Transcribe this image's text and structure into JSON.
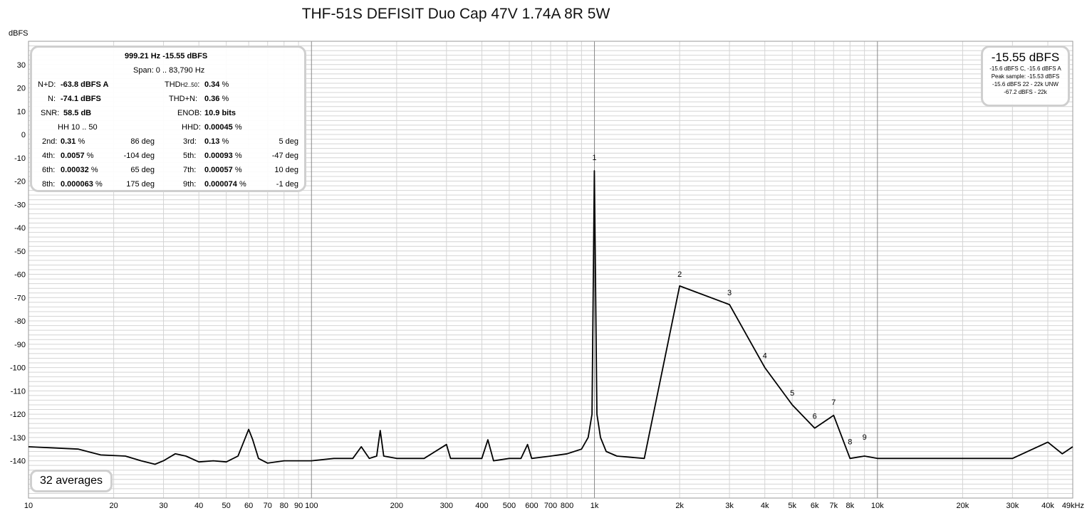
{
  "chart_data": {
    "type": "line",
    "title": "THF-51S DEFISIT Duo Cap 47V 1.74A 8R 5W",
    "ylabel": "dBFS",
    "xlabel": "",
    "x_scale": "log",
    "xlim": [
      10,
      49000
    ],
    "ylim": [
      -156,
      40
    ],
    "grid": true,
    "y_ticks": [
      30,
      20,
      10,
      0,
      -10,
      -20,
      -30,
      -40,
      -50,
      -60,
      -70,
      -80,
      -90,
      -100,
      -110,
      -120,
      -130,
      -140
    ],
    "x_ticks": [
      {
        "v": 10,
        "label": "10"
      },
      {
        "v": 20,
        "label": "20"
      },
      {
        "v": 30,
        "label": "30"
      },
      {
        "v": 40,
        "label": "40"
      },
      {
        "v": 50,
        "label": "50"
      },
      {
        "v": 60,
        "label": "60"
      },
      {
        "v": 70,
        "label": "70"
      },
      {
        "v": 80,
        "label": "80"
      },
      {
        "v": 90,
        "label": "90"
      },
      {
        "v": 100,
        "label": "100"
      },
      {
        "v": 200,
        "label": "200"
      },
      {
        "v": 300,
        "label": "300"
      },
      {
        "v": 400,
        "label": "400"
      },
      {
        "v": 500,
        "label": "500"
      },
      {
        "v": 600,
        "label": "600"
      },
      {
        "v": 700,
        "label": "700"
      },
      {
        "v": 800,
        "label": "800"
      },
      {
        "v": 1000,
        "label": "1k"
      },
      {
        "v": 2000,
        "label": "2k"
      },
      {
        "v": 3000,
        "label": "3k"
      },
      {
        "v": 4000,
        "label": "4k"
      },
      {
        "v": 5000,
        "label": "5k"
      },
      {
        "v": 6000,
        "label": "6k"
      },
      {
        "v": 7000,
        "label": "7k"
      },
      {
        "v": 8000,
        "label": "8k"
      },
      {
        "v": 10000,
        "label": "10k"
      },
      {
        "v": 20000,
        "label": "20k"
      },
      {
        "v": 30000,
        "label": "30k"
      },
      {
        "v": 40000,
        "label": "40k"
      },
      {
        "v": 49000,
        "label": "49kHz"
      }
    ],
    "series": [
      {
        "values": [
          [
            10,
            -134
          ],
          [
            15,
            -135
          ],
          [
            18,
            -137.5
          ],
          [
            22,
            -138
          ],
          [
            25,
            -140
          ],
          [
            28,
            -141.5
          ],
          [
            30,
            -140
          ],
          [
            33,
            -137
          ],
          [
            36,
            -138
          ],
          [
            40,
            -140.5
          ],
          [
            45,
            -140
          ],
          [
            50,
            -140.5
          ],
          [
            55,
            -138
          ],
          [
            58,
            -131
          ],
          [
            60,
            -126.5
          ],
          [
            62,
            -131
          ],
          [
            65,
            -139
          ],
          [
            70,
            -141
          ],
          [
            80,
            -140
          ],
          [
            90,
            -140
          ],
          [
            100,
            -140
          ],
          [
            120,
            -139
          ],
          [
            140,
            -139
          ],
          [
            150,
            -134
          ],
          [
            160,
            -139
          ],
          [
            170,
            -138
          ],
          [
            175,
            -127
          ],
          [
            180,
            -138
          ],
          [
            200,
            -139
          ],
          [
            250,
            -139
          ],
          [
            300,
            -133
          ],
          [
            310,
            -139
          ],
          [
            400,
            -139
          ],
          [
            420,
            -131
          ],
          [
            440,
            -140
          ],
          [
            500,
            -139
          ],
          [
            550,
            -139
          ],
          [
            580,
            -133
          ],
          [
            600,
            -139
          ],
          [
            700,
            -138
          ],
          [
            800,
            -137
          ],
          [
            900,
            -135
          ],
          [
            950,
            -130
          ],
          [
            980,
            -120
          ],
          [
            999.21,
            -15.55
          ],
          [
            1020,
            -120
          ],
          [
            1050,
            -130
          ],
          [
            1100,
            -136
          ],
          [
            1200,
            -138
          ],
          [
            1500,
            -139
          ],
          [
            2000,
            -65
          ],
          [
            3000,
            -73
          ],
          [
            4000,
            -100
          ],
          [
            5000,
            -116
          ],
          [
            6000,
            -126
          ],
          [
            7000,
            -120.5
          ],
          [
            8000,
            -139
          ],
          [
            9000,
            -138
          ],
          [
            10000,
            -139
          ],
          [
            15000,
            -139
          ],
          [
            20000,
            -139
          ],
          [
            30000,
            -139
          ],
          [
            40000,
            -132
          ],
          [
            45000,
            -137
          ],
          [
            49000,
            -134
          ]
        ]
      }
    ],
    "harmonic_markers": [
      {
        "label": "1",
        "x": 999.21,
        "y": -11
      },
      {
        "label": "2",
        "x": 2000,
        "y": -61
      },
      {
        "label": "3",
        "x": 3000,
        "y": -69
      },
      {
        "label": "4",
        "x": 4000,
        "y": -96
      },
      {
        "label": "5",
        "x": 5000,
        "y": -112
      },
      {
        "label": "6",
        "x": 6000,
        "y": -122
      },
      {
        "label": "7",
        "x": 7000,
        "y": -116
      },
      {
        "label": "8",
        "x": 8000,
        "y": -133
      },
      {
        "label": "9",
        "x": 9000,
        "y": -131
      }
    ]
  },
  "info": {
    "freq_level": "999.21 Hz  -15.55 dBFS",
    "span": "Span: 0 .. 83,790 Hz",
    "nd_label": "N+D:",
    "nd_value": "-63.8 dBFS A",
    "thd_label": "THD",
    "thd_sub": "H2..50",
    "thd_colon": ":",
    "thd_value": "0.34",
    "thd_unit": "%",
    "n_label": "N:",
    "n_value": "-74.1 dBFS",
    "thdn_label": "THD+N:",
    "thdn_value": "0.36",
    "thdn_unit": "%",
    "snr_label": "SNR:",
    "snr_value": "58.5 dB",
    "enob_label": "ENOB:",
    "enob_value": "10.9 bits",
    "hh_range": "HH 10 .. 50",
    "hhd_label": "HHD:",
    "hhd_value": "0.00045",
    "hhd_unit": "%",
    "harmonics": [
      {
        "l_label": "2nd:",
        "l_value": "0.31",
        "l_unit": "%",
        "l_deg": "86 deg",
        "r_label": "3rd:",
        "r_value": "0.13",
        "r_unit": "%",
        "r_deg": "5 deg"
      },
      {
        "l_label": "4th:",
        "l_value": "0.0057",
        "l_unit": "%",
        "l_deg": "-104 deg",
        "r_label": "5th:",
        "r_value": "0.00093",
        "r_unit": "%",
        "r_deg": "-47 deg"
      },
      {
        "l_label": "6th:",
        "l_value": "0.00032",
        "l_unit": "%",
        "l_deg": "65 deg",
        "r_label": "7th:",
        "r_value": "0.00057",
        "r_unit": "%",
        "r_deg": "10 deg"
      },
      {
        "l_label": "8th:",
        "l_value": "0.000063",
        "l_unit": "%",
        "l_deg": "175 deg",
        "r_label": "9th:",
        "r_value": "0.000074",
        "r_unit": "%",
        "r_deg": "-1 deg"
      }
    ]
  },
  "peak": {
    "level": "-15.55 dBFS",
    "line1": "-15.6 dBFS C, -15.6 dBFS A",
    "line2": "Peak sample: -15.53 dBFS",
    "line3": "-15.6 dBFS 22 - 22k UNW",
    "line4": "-67.2 dBFS - 22k"
  },
  "averages": "32 averages",
  "colors": {
    "trace": "#000000",
    "grid_minor": "#d4d4d4",
    "grid_major": "#8a8a8a",
    "box_border": "#cfcfcf"
  }
}
